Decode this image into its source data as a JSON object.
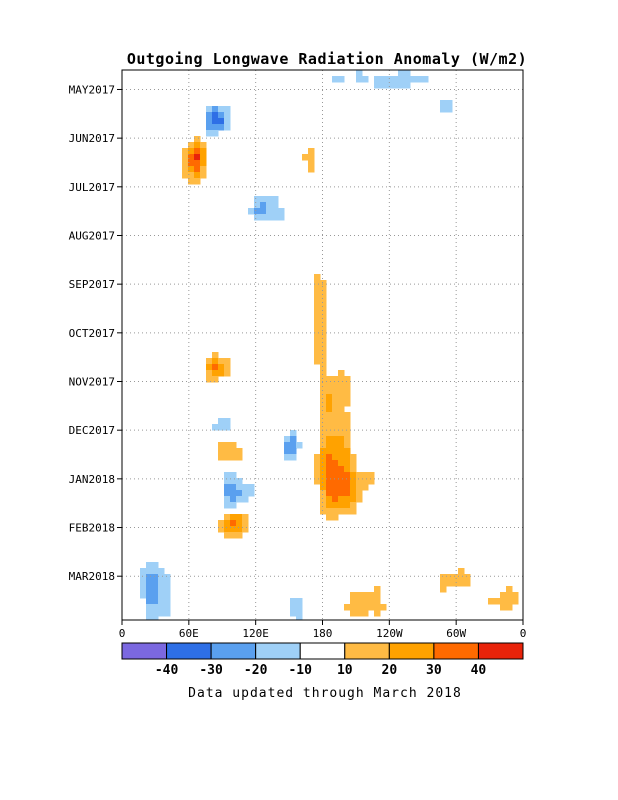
{
  "chart_data": {
    "type": "heatmap",
    "title": "Outgoing Longwave Radiation Anomaly (W/m2)",
    "xlabel": "",
    "ylabel": "",
    "x_tick_labels": [
      "0",
      "60E",
      "120E",
      "180",
      "120W",
      "60W",
      "0"
    ],
    "x_ticks_deg": [
      0,
      60,
      120,
      180,
      240,
      300,
      360
    ],
    "y_tick_labels": [
      "MAY2017",
      "JUN2017",
      "JUL2017",
      "AUG2017",
      "SEP2017",
      "OCT2017",
      "NOV2017",
      "DEC2017",
      "JAN2018",
      "FEB2018",
      "MAR2018"
    ],
    "y_ticks_month": [
      1,
      2,
      3,
      4,
      5,
      6,
      7,
      8,
      9,
      10,
      11
    ],
    "y_range_month": [
      0.6,
      11.9
    ],
    "grid": true,
    "colorbar": {
      "labels": [
        "-40",
        "-30",
        "-20",
        "-10",
        "10",
        "20",
        "30",
        "40"
      ],
      "bins": [
        {
          "min": null,
          "max": -40,
          "color": "#7b68e0"
        },
        {
          "min": -40,
          "max": -30,
          "color": "#2e6fe6"
        },
        {
          "min": -30,
          "max": -20,
          "color": "#5aa0ef"
        },
        {
          "min": -20,
          "max": -10,
          "color": "#9fd0f7"
        },
        {
          "min": -10,
          "max": 10,
          "color": "#ffffff"
        },
        {
          "min": 10,
          "max": 20,
          "color": "#ffbb44"
        },
        {
          "min": 20,
          "max": 30,
          "color": "#ffa200"
        },
        {
          "min": 30,
          "max": 40,
          "color": "#ff6a00"
        },
        {
          "min": 40,
          "max": null,
          "color": "#e8230a"
        }
      ]
    },
    "features": [
      {
        "lon": 195,
        "month": 9.1,
        "value": 35,
        "sx": 20,
        "sy": 0.6
      },
      {
        "lon": 190,
        "month": 7.8,
        "value": 22,
        "sx": 14,
        "sy": 1.2
      },
      {
        "lon": 178,
        "month": 5.6,
        "value": 15,
        "sx": 10,
        "sy": 1.2
      },
      {
        "lon": 220,
        "month": 11.6,
        "value": 17,
        "sx": 25,
        "sy": 0.35
      },
      {
        "lon": 65,
        "month": 2.35,
        "value": 32,
        "sx": 9,
        "sy": 0.35
      },
      {
        "lon": 68,
        "month": 2.9,
        "value": 18,
        "sx": 12,
        "sy": 0.6
      },
      {
        "lon": 85,
        "month": 6.7,
        "value": 30,
        "sx": 10,
        "sy": 0.25
      },
      {
        "lon": 95,
        "month": 8.45,
        "value": 26,
        "sx": 10,
        "sy": 0.25
      },
      {
        "lon": 100,
        "month": 9.9,
        "value": 33,
        "sx": 10,
        "sy": 0.3
      },
      {
        "lon": 170,
        "month": 2.4,
        "value": 16,
        "sx": 10,
        "sy": 0.3
      },
      {
        "lon": 345,
        "month": 11.5,
        "value": 14,
        "sx": 15,
        "sy": 0.3
      },
      {
        "lon": 300,
        "month": 11.1,
        "value": 12,
        "sx": 20,
        "sy": 0.25
      },
      {
        "lon": 85,
        "month": 1.6,
        "value": -38,
        "sx": 9,
        "sy": 0.3
      },
      {
        "lon": 130,
        "month": 3.5,
        "value": -25,
        "sx": 14,
        "sy": 0.3
      },
      {
        "lon": 75,
        "month": 3.1,
        "value": -15,
        "sx": 12,
        "sy": 0.5
      },
      {
        "lon": 100,
        "month": 9.25,
        "value": -27,
        "sx": 12,
        "sy": 0.4
      },
      {
        "lon": 150,
        "month": 8.3,
        "value": -24,
        "sx": 9,
        "sy": 0.3
      },
      {
        "lon": 90,
        "month": 7.9,
        "value": -22,
        "sx": 12,
        "sy": 0.2
      },
      {
        "lon": 30,
        "month": 11.3,
        "value": -30,
        "sx": 12,
        "sy": 0.5
      },
      {
        "lon": 155,
        "month": 11.6,
        "value": -20,
        "sx": 8,
        "sy": 0.3
      },
      {
        "lon": 235,
        "month": 0.8,
        "value": -15,
        "sx": 45,
        "sy": 0.2
      },
      {
        "lon": 290,
        "month": 1.3,
        "value": -12,
        "sx": 15,
        "sy": 0.15
      }
    ]
  },
  "footnote": "Data updated through March 2018"
}
